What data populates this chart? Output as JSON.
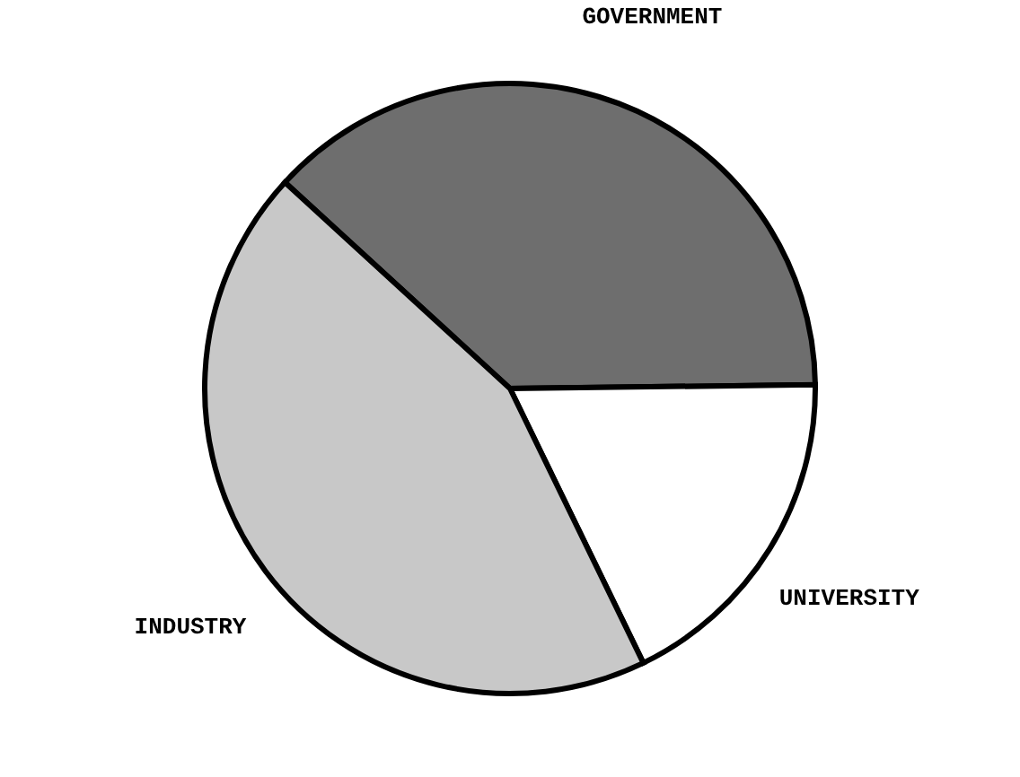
{
  "chart_data": {
    "type": "pie",
    "categories": [
      "GOVERNMENT",
      "UNIVERSITY",
      "INDUSTRY"
    ],
    "values": [
      38,
      18,
      44
    ],
    "colors": [
      "#6e6e6e",
      "#ffffff",
      "#c8c8c8"
    ]
  }
}
